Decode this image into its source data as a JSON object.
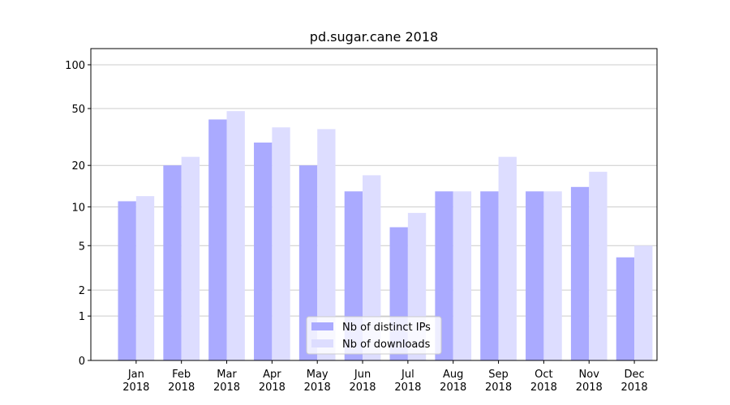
{
  "chart_data": {
    "type": "bar",
    "title": "pd.sugar.cane 2018",
    "categories": [
      "Jan\n2018",
      "Feb\n2018",
      "Mar\n2018",
      "Apr\n2018",
      "May\n2018",
      "Jun\n2018",
      "Jul\n2018",
      "Aug\n2018",
      "Sep\n2018",
      "Oct\n2018",
      "Nov\n2018",
      "Dec\n2018"
    ],
    "series": [
      {
        "name": "Nb of distinct IPs",
        "color": "#aaaaff",
        "values": [
          11,
          20,
          42,
          29,
          20,
          13,
          7,
          13,
          13,
          13,
          14,
          4
        ]
      },
      {
        "name": "Nb of downloads",
        "color": "#ddddff",
        "values": [
          12,
          23,
          48,
          37,
          36,
          17,
          9,
          13,
          23,
          13,
          18,
          5
        ]
      }
    ],
    "yscale": "log1p",
    "ylim": [
      0,
      129
    ],
    "yticks": [
      0,
      1,
      2,
      5,
      10,
      20,
      50,
      100
    ],
    "grid": true,
    "legend": "lower center"
  }
}
